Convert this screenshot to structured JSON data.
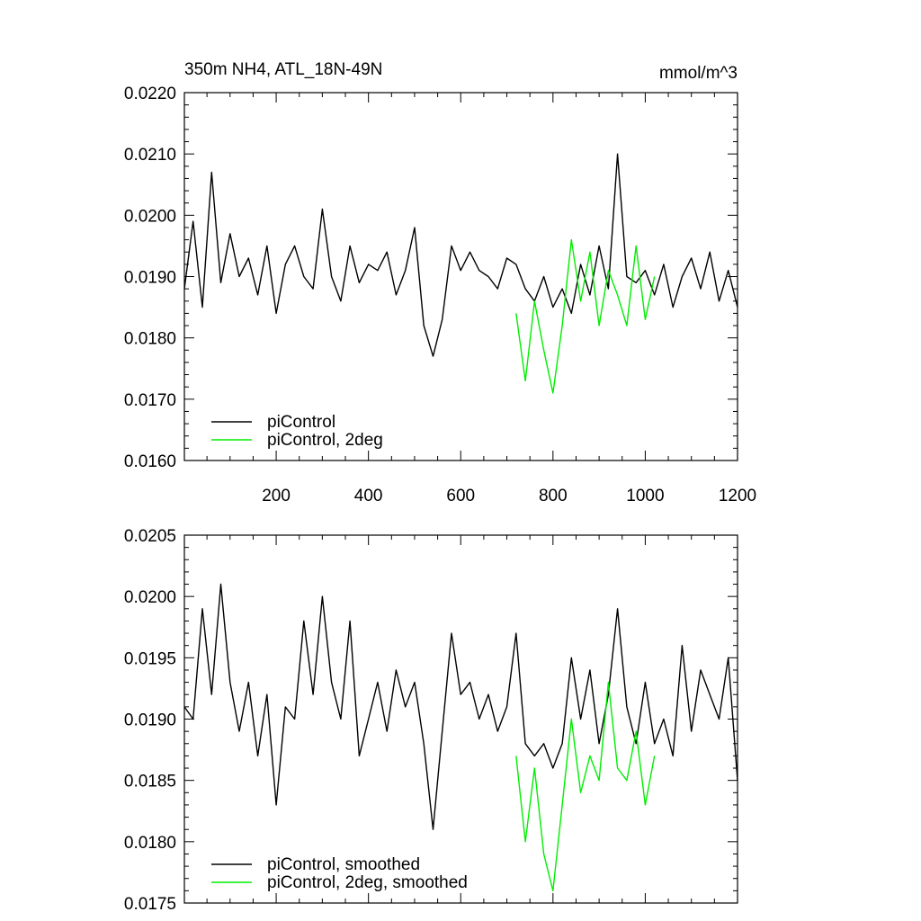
{
  "title_left": "350m NH4, ATL_18N-49N",
  "title_right": "mmol/m^3",
  "colors": {
    "series_black": "#000000",
    "series_green": "#00ee00"
  },
  "chart_data": [
    {
      "type": "line",
      "title": "350m NH4, ATL_18N-49N",
      "units": "mmol/m^3",
      "xlim": [
        1,
        1200
      ],
      "ylim": [
        0.016,
        0.022
      ],
      "x_tick_labels": [
        "200",
        "400",
        "600",
        "800",
        "1000",
        "1200"
      ],
      "y_tick_labels": [
        "0.0160",
        "0.0170",
        "0.0180",
        "0.0190",
        "0.0200",
        "0.0210",
        "0.0220"
      ],
      "legend_position": "bottom-left",
      "series": [
        {
          "name": "piControl",
          "color": "#000000",
          "x": [
            1,
            20,
            40,
            60,
            80,
            100,
            120,
            140,
            160,
            180,
            200,
            220,
            240,
            260,
            280,
            300,
            320,
            340,
            360,
            380,
            400,
            420,
            440,
            460,
            480,
            500,
            520,
            540,
            560,
            580,
            600,
            620,
            640,
            660,
            680,
            700,
            720,
            740,
            760,
            780,
            800,
            820,
            840,
            860,
            880,
            900,
            920,
            940,
            960,
            980,
            1000,
            1020,
            1040,
            1060,
            1080,
            1100,
            1120,
            1140,
            1160,
            1180,
            1200
          ],
          "y": [
            0.0188,
            0.0199,
            0.0185,
            0.0207,
            0.0189,
            0.0197,
            0.019,
            0.0193,
            0.0187,
            0.0195,
            0.0184,
            0.0192,
            0.0195,
            0.019,
            0.0188,
            0.0201,
            0.019,
            0.0186,
            0.0195,
            0.0189,
            0.0192,
            0.0191,
            0.0194,
            0.0187,
            0.0191,
            0.0198,
            0.0182,
            0.0177,
            0.0183,
            0.0195,
            0.0191,
            0.0194,
            0.0191,
            0.019,
            0.0188,
            0.0193,
            0.0192,
            0.0188,
            0.0186,
            0.019,
            0.0185,
            0.0188,
            0.0184,
            0.0192,
            0.0187,
            0.0195,
            0.0188,
            0.021,
            0.019,
            0.0189,
            0.0191,
            0.0187,
            0.0192,
            0.0185,
            0.019,
            0.0193,
            0.0188,
            0.0194,
            0.0186,
            0.0191,
            0.0185
          ]
        },
        {
          "name": "piControl, 2deg",
          "color": "#00ee00",
          "x": [
            720,
            740,
            760,
            780,
            800,
            820,
            840,
            860,
            880,
            900,
            920,
            940,
            960,
            980,
            1000,
            1020
          ],
          "y": [
            0.0184,
            0.0173,
            0.0186,
            0.0178,
            0.0171,
            0.0182,
            0.0196,
            0.0186,
            0.0194,
            0.0182,
            0.0191,
            0.0187,
            0.0182,
            0.0195,
            0.0183,
            0.019
          ]
        }
      ]
    },
    {
      "type": "line",
      "xlim": [
        1,
        1200
      ],
      "ylim": [
        0.0175,
        0.0205
      ],
      "x_tick_labels": [],
      "y_tick_labels": [
        "0.0175",
        "0.0180",
        "0.0185",
        "0.0190",
        "0.0195",
        "0.0200",
        "0.0205"
      ],
      "legend_position": "bottom-left",
      "series": [
        {
          "name": "piControl, smoothed",
          "color": "#000000",
          "x": [
            1,
            20,
            40,
            60,
            80,
            100,
            120,
            140,
            160,
            180,
            200,
            220,
            240,
            260,
            280,
            300,
            320,
            340,
            360,
            380,
            400,
            420,
            440,
            460,
            480,
            500,
            520,
            540,
            560,
            580,
            600,
            620,
            640,
            660,
            680,
            700,
            720,
            740,
            760,
            780,
            800,
            820,
            840,
            860,
            880,
            900,
            920,
            940,
            960,
            980,
            1000,
            1020,
            1040,
            1060,
            1080,
            1100,
            1120,
            1140,
            1160,
            1180,
            1200
          ],
          "y": [
            0.0191,
            0.019,
            0.0199,
            0.0192,
            0.0201,
            0.0193,
            0.0189,
            0.0193,
            0.0187,
            0.0192,
            0.0183,
            0.0191,
            0.019,
            0.0198,
            0.0192,
            0.02,
            0.0193,
            0.019,
            0.0198,
            0.0187,
            0.019,
            0.0193,
            0.0189,
            0.0194,
            0.0191,
            0.0193,
            0.0188,
            0.0181,
            0.0189,
            0.0197,
            0.0192,
            0.0193,
            0.019,
            0.0192,
            0.0189,
            0.0191,
            0.0197,
            0.0188,
            0.0187,
            0.0188,
            0.0186,
            0.0188,
            0.0195,
            0.019,
            0.0194,
            0.0188,
            0.0192,
            0.0199,
            0.0191,
            0.0188,
            0.0193,
            0.0188,
            0.019,
            0.0187,
            0.0196,
            0.0189,
            0.0194,
            0.0192,
            0.019,
            0.0195,
            0.0185
          ]
        },
        {
          "name": "piControl, 2deg, smoothed",
          "color": "#00ee00",
          "x": [
            720,
            740,
            760,
            780,
            800,
            820,
            840,
            860,
            880,
            900,
            920,
            940,
            960,
            980,
            1000,
            1020
          ],
          "y": [
            0.0187,
            0.018,
            0.0186,
            0.0179,
            0.0176,
            0.0183,
            0.019,
            0.0184,
            0.0187,
            0.0185,
            0.0193,
            0.0186,
            0.0185,
            0.0189,
            0.0183,
            0.0187
          ]
        }
      ]
    }
  ]
}
